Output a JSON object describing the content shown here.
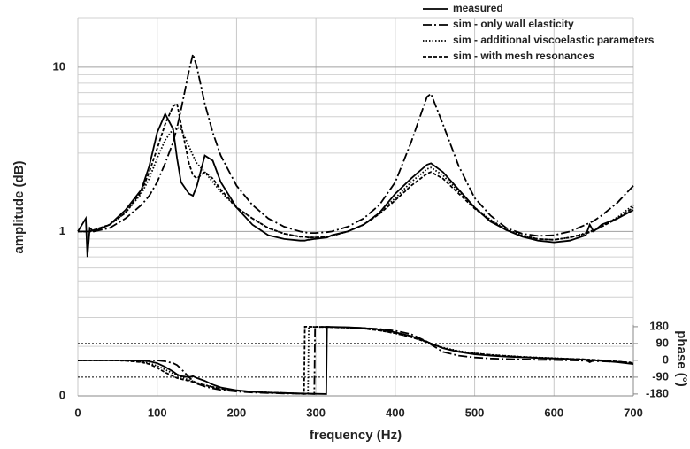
{
  "chart_data": {
    "type": "line",
    "x_label": "frequency (Hz)",
    "y_label": "amplitude (dB)",
    "y2_label": "phase (°)",
    "log_y": true,
    "grid": true,
    "legend": "upper right",
    "xlim": [
      0,
      700
    ],
    "xticks": [
      0,
      100,
      200,
      300,
      400,
      500,
      600,
      700
    ],
    "ylim": [
      0.1,
      20
    ],
    "yticks": [
      {
        "value": 0.1,
        "label": "0"
      },
      1,
      10
    ],
    "yminorticks": [
      0.2,
      0.3,
      0.4,
      0.5,
      0.6,
      0.7,
      0.8,
      0.9,
      2,
      3,
      4,
      5,
      6,
      7,
      8,
      9,
      20
    ],
    "y2lim": [
      -190,
      1833
    ],
    "y2ticks": [
      -180,
      -90,
      0,
      90,
      180
    ],
    "y2_reference_lines": [
      -90,
      90
    ],
    "x": [
      0,
      10,
      12,
      15,
      20,
      40,
      60,
      80,
      90,
      100,
      110,
      120,
      125,
      130,
      140,
      145,
      150,
      160,
      170,
      180,
      200,
      220,
      240,
      260,
      280,
      285,
      286,
      290,
      291,
      298,
      299,
      313,
      314,
      320,
      340,
      360,
      380,
      400,
      420,
      440,
      445,
      460,
      480,
      500,
      520,
      540,
      560,
      580,
      600,
      620,
      640,
      645,
      650,
      660,
      680,
      700
    ],
    "series": [
      {
        "name": "measured",
        "color": "#000000",
        "dash": "solid",
        "values": [
          1.0,
          1.2,
          0.7,
          1.05,
          1.0,
          1.1,
          1.35,
          1.8,
          2.5,
          4.0,
          5.2,
          4.2,
          2.8,
          2.0,
          1.7,
          1.65,
          1.9,
          2.9,
          2.7,
          2.0,
          1.4,
          1.1,
          0.95,
          0.9,
          0.88,
          0.88,
          0.88,
          0.89,
          0.89,
          0.9,
          0.9,
          0.92,
          0.92,
          0.95,
          1.0,
          1.1,
          1.3,
          1.7,
          2.1,
          2.55,
          2.6,
          2.3,
          1.8,
          1.4,
          1.15,
          1.02,
          0.93,
          0.88,
          0.86,
          0.88,
          0.95,
          1.1,
          1.0,
          1.1,
          1.2,
          1.35
        ],
        "phase": [
          0,
          0,
          0,
          0,
          0,
          0,
          0,
          -2,
          -5,
          -15,
          -35,
          -60,
          -75,
          -85,
          -90,
          -85,
          -95,
          -110,
          -130,
          -145,
          -160,
          -168,
          -173,
          -175,
          -177,
          -177,
          -178,
          -178,
          -178,
          -179,
          -179,
          -180,
          180,
          179,
          177,
          173,
          165,
          150,
          130,
          100,
          90,
          65,
          45,
          32,
          25,
          20,
          16,
          13,
          10,
          7,
          3,
          -10,
          0,
          -3,
          -10,
          -20
        ]
      },
      {
        "name": "sim - only wall elasticity",
        "color": "#000000",
        "dash": "dashdot",
        "values": [
          1.0,
          1.0,
          1.0,
          1.0,
          1.0,
          1.05,
          1.2,
          1.45,
          1.65,
          2.0,
          2.6,
          3.5,
          4.3,
          5.5,
          9.5,
          12,
          10,
          6,
          4,
          2.9,
          1.9,
          1.45,
          1.2,
          1.07,
          1.0,
          0.99,
          0.99,
          0.98,
          0.98,
          0.98,
          0.98,
          0.99,
          0.99,
          1.0,
          1.07,
          1.2,
          1.45,
          2.0,
          3.5,
          6.6,
          6.9,
          4.5,
          2.5,
          1.6,
          1.25,
          1.05,
          0.97,
          0.94,
          0.95,
          1.0,
          1.1,
          1.13,
          1.16,
          1.25,
          1.5,
          1.9
        ],
        "phase": [
          0,
          0,
          0,
          0,
          0,
          0,
          0,
          0,
          0,
          0,
          -5,
          -15,
          -25,
          -45,
          -90,
          -110,
          -125,
          -140,
          -150,
          -158,
          -167,
          -172,
          -175,
          -177,
          -178,
          -179,
          -179,
          -179,
          -179,
          -180,
          180,
          179,
          179,
          178,
          176,
          173,
          168,
          158,
          140,
          100,
          85,
          45,
          25,
          15,
          10,
          7,
          5,
          3,
          2,
          0,
          -2,
          -3,
          -4,
          -5,
          -8,
          -12
        ]
      },
      {
        "name": "sim - additional viscoelastic parameters",
        "color": "#000000",
        "dash": "dotted",
        "values": [
          1.0,
          1.0,
          1.0,
          1.0,
          1.02,
          1.1,
          1.3,
          1.7,
          2.1,
          2.8,
          3.6,
          4.2,
          4.3,
          4.2,
          3.3,
          2.9,
          2.6,
          2.3,
          2.0,
          1.75,
          1.4,
          1.2,
          1.05,
          0.97,
          0.93,
          0.93,
          0.93,
          0.92,
          0.92,
          0.92,
          0.92,
          0.93,
          0.93,
          0.94,
          1.0,
          1.1,
          1.3,
          1.6,
          2.0,
          2.4,
          2.45,
          2.2,
          1.75,
          1.4,
          1.18,
          1.03,
          0.95,
          0.9,
          0.89,
          0.92,
          0.98,
          1.0,
          1.02,
          1.08,
          1.22,
          1.45
        ],
        "phase": [
          0,
          0,
          0,
          0,
          0,
          0,
          -2,
          -8,
          -15,
          -30,
          -50,
          -70,
          -80,
          -90,
          -105,
          -112,
          -120,
          -132,
          -142,
          -150,
          -162,
          -168,
          -172,
          -175,
          -178,
          -179,
          -179,
          -180,
          180,
          179,
          179,
          178,
          178,
          177,
          175,
          170,
          160,
          145,
          125,
          98,
          90,
          68,
          50,
          38,
          30,
          24,
          19,
          15,
          12,
          8,
          5,
          4,
          3,
          0,
          -6,
          -15
        ]
      },
      {
        "name": "sim - with mesh resonances",
        "color": "#000000",
        "dash": "dashed",
        "values": [
          1.0,
          1.0,
          1.0,
          1.0,
          1.02,
          1.1,
          1.3,
          1.75,
          2.3,
          3.2,
          4.5,
          5.8,
          6.0,
          4.5,
          2.6,
          2.2,
          2.1,
          2.3,
          2.1,
          1.8,
          1.4,
          1.2,
          1.05,
          0.97,
          0.93,
          0.93,
          0.93,
          0.92,
          0.92,
          0.92,
          0.92,
          0.93,
          0.93,
          0.94,
          1.0,
          1.1,
          1.28,
          1.55,
          1.9,
          2.25,
          2.3,
          2.1,
          1.7,
          1.38,
          1.17,
          1.02,
          0.94,
          0.9,
          0.89,
          0.92,
          0.97,
          0.99,
          1.01,
          1.07,
          1.2,
          1.4
        ],
        "phase": [
          0,
          0,
          0,
          0,
          0,
          0,
          -2,
          -10,
          -20,
          -40,
          -65,
          -85,
          -95,
          -100,
          -110,
          -115,
          -122,
          -133,
          -143,
          -151,
          -162,
          -168,
          -172,
          -175,
          -178,
          -180,
          180,
          180,
          180,
          179,
          179,
          178,
          178,
          177,
          175,
          170,
          160,
          145,
          124,
          97,
          89,
          66,
          48,
          37,
          29,
          23,
          18,
          14,
          11,
          8,
          5,
          4,
          3,
          0,
          -6,
          -14
        ]
      }
    ]
  }
}
